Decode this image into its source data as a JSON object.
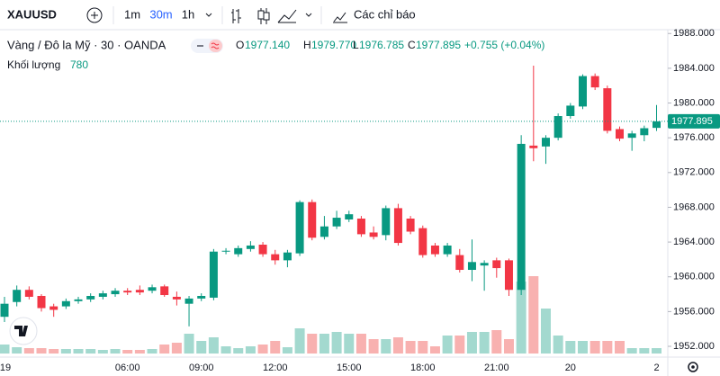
{
  "header": {
    "symbol": "XAUUSD",
    "intervals": [
      "1m",
      "30m",
      "1h"
    ],
    "indicators": "Các chỉ báo"
  },
  "legend": {
    "title": "Vàng / Đô la Mỹ · 30 · OANDA",
    "open_letter": "O",
    "open": "1977.140",
    "high_letter": "H",
    "high": "1979.770",
    "low_letter": "L",
    "low": "1976.785",
    "close_letter": "C",
    "close": "1977.895",
    "change": "+0.755 (+0.04%)",
    "volume_label": "Khối lượng",
    "volume": "780"
  },
  "chart_data": {
    "type": "candlestick",
    "categories": [
      "19",
      null,
      null,
      null,
      null,
      null,
      null,
      null,
      null,
      null,
      "06:00",
      null,
      null,
      null,
      null,
      null,
      "09:00",
      null,
      null,
      null,
      null,
      null,
      "12:00",
      null,
      null,
      null,
      null,
      null,
      "15:00",
      null,
      null,
      null,
      null,
      null,
      "18:00",
      null,
      null,
      null,
      null,
      null,
      "21:00",
      null,
      null,
      null,
      null,
      null,
      "20",
      null,
      null,
      null,
      null,
      null,
      null,
      "2"
    ],
    "open": [
      1955.4,
      1957.1,
      1958.5,
      1957.8,
      1956.6,
      1956.6,
      1957.2,
      1957.4,
      1957.7,
      1958.0,
      1958.4,
      1958.5,
      1958.4,
      1958.9,
      1957.7,
      1956.9,
      1957.5,
      1957.6,
      1962.9,
      1962.6,
      1963.2,
      1963.7,
      1962.6,
      1961.9,
      1962.7,
      1968.6,
      1964.6,
      1965.8,
      1966.6,
      1966.7,
      1965.1,
      1964.8,
      1967.9,
      1966.7,
      1965.6,
      1963.6,
      1962.6,
      1962.5,
      1960.8,
      1961.3,
      1961.9,
      1961.9,
      1958.5,
      1975.1,
      1975.0,
      1976.0,
      1978.5,
      1979.6,
      1983.1,
      1981.7,
      1977.0,
      1976.0,
      1976.3,
      1977.14
    ],
    "high": [
      1957.7,
      1959.0,
      1958.9,
      1958.0,
      1956.9,
      1957.5,
      1957.7,
      1958.1,
      1958.4,
      1958.7,
      1958.7,
      1959.0,
      1959.1,
      1959.1,
      1958.3,
      1957.8,
      1958.1,
      1963.2,
      1963.3,
      1963.6,
      1964.1,
      1964.0,
      1963.1,
      1963.1,
      1968.8,
      1968.9,
      1967.0,
      1967.6,
      1967.6,
      1967.0,
      1965.8,
      1968.2,
      1968.4,
      1967.0,
      1965.9,
      1963.9,
      1963.9,
      1963.2,
      1964.3,
      1961.9,
      1962.2,
      1962.1,
      1976.3,
      1984.3,
      1976.3,
      1978.8,
      1980.0,
      1983.3,
      1983.4,
      1982.0,
      1977.3,
      1976.8,
      1977.4,
      1979.77
    ],
    "low": [
      1954.8,
      1956.6,
      1957.4,
      1956.0,
      1955.4,
      1956.3,
      1956.9,
      1957.1,
      1957.4,
      1957.7,
      1957.9,
      1957.9,
      1958.1,
      1957.7,
      1956.7,
      1954.3,
      1957.2,
      1957.3,
      1962.6,
      1962.3,
      1962.9,
      1962.3,
      1961.4,
      1961.1,
      1962.4,
      1964.2,
      1964.3,
      1965.5,
      1966.3,
      1964.6,
      1964.3,
      1964.2,
      1963.6,
      1964.9,
      1962.2,
      1962.3,
      1962.3,
      1960.5,
      1959.5,
      1958.4,
      1959.9,
      1957.8,
      1957.9,
      1973.3,
      1973.0,
      1975.7,
      1978.2,
      1979.3,
      1981.5,
      1976.5,
      1975.6,
      1974.5,
      1975.6,
      1976.785
    ],
    "close": [
      1956.9,
      1958.5,
      1957.7,
      1956.4,
      1956.2,
      1957.2,
      1957.4,
      1957.8,
      1958.1,
      1958.4,
      1958.2,
      1958.2,
      1958.8,
      1957.9,
      1957.4,
      1957.5,
      1957.8,
      1962.9,
      1963.0,
      1963.3,
      1963.6,
      1962.6,
      1961.9,
      1962.8,
      1968.6,
      1964.5,
      1965.8,
      1966.8,
      1967.2,
      1964.9,
      1964.6,
      1967.9,
      1963.9,
      1965.2,
      1962.5,
      1962.6,
      1963.6,
      1960.8,
      1961.7,
      1961.6,
      1961.0,
      1958.5,
      1975.3,
      1974.8,
      1976.0,
      1978.5,
      1979.7,
      1983.1,
      1981.8,
      1976.8,
      1975.9,
      1976.5,
      1977.1,
      1977.895
    ],
    "volume": [
      1300,
      910,
      780,
      780,
      650,
      650,
      650,
      650,
      520,
      650,
      520,
      520,
      650,
      1300,
      1560,
      2860,
      1820,
      2340,
      1040,
      780,
      1040,
      1300,
      1820,
      910,
      3640,
      2860,
      2860,
      3120,
      2860,
      2860,
      2080,
      2080,
      2340,
      1820,
      1820,
      1040,
      2600,
      2600,
      3120,
      3120,
      3380,
      2080,
      10400,
      11180,
      6500,
      2600,
      1820,
      1820,
      1820,
      1820,
      1820,
      780,
      780,
      780
    ],
    "ylim": [
      1950.76,
      1988.75
    ],
    "yticks": [
      {
        "value": 1952,
        "label": "1952.000"
      },
      {
        "value": 1956,
        "label": "1956.000"
      },
      {
        "value": 1960,
        "label": "1960.000"
      },
      {
        "value": 1964,
        "label": "1964.000"
      },
      {
        "value": 1968,
        "label": "1968.000"
      },
      {
        "value": 1972,
        "label": "1972.000"
      },
      {
        "value": 1976,
        "label": "1976.000"
      },
      {
        "value": 1980,
        "label": "1980.000"
      },
      {
        "value": 1984,
        "label": "1984.000"
      },
      {
        "value": 1988,
        "label": "1988.000"
      }
    ],
    "last_price": {
      "value": 1977.895,
      "label": "1977.895"
    },
    "up_color": "#089981",
    "down_color": "#f23645",
    "up_volume_color": "#a3d9cf",
    "down_volume_color": "#f8b1b0"
  }
}
